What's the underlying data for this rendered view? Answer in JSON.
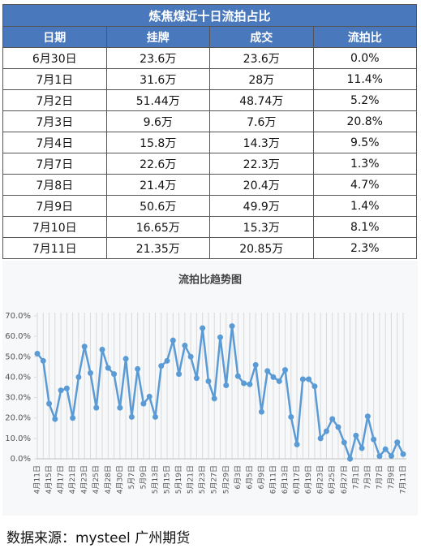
{
  "table": {
    "title": "炼焦煤近十日流拍占比",
    "columns": [
      "日期",
      "挂牌",
      "成交",
      "流拍比"
    ],
    "rows": [
      [
        "6月30日",
        "23.6万",
        "23.6万",
        "0.0%"
      ],
      [
        "7月1日",
        "31.6万",
        "28万",
        "11.4%"
      ],
      [
        "7月2日",
        "51.44万",
        "48.74万",
        "5.2%"
      ],
      [
        "7月3日",
        "9.6万",
        "7.6万",
        "20.8%"
      ],
      [
        "7月4日",
        "15.8万",
        "14.3万",
        "9.5%"
      ],
      [
        "7月7日",
        "22.6万",
        "22.3万",
        "1.3%"
      ],
      [
        "7月8日",
        "21.4万",
        "20.4万",
        "4.7%"
      ],
      [
        "7月9日",
        "50.6万",
        "49.9万",
        "1.4%"
      ],
      [
        "7月10日",
        "16.65万",
        "15.3万",
        "8.1%"
      ],
      [
        "7月11日",
        "21.35万",
        "20.85万",
        "2.3%"
      ]
    ]
  },
  "chart_data": {
    "type": "line",
    "title": "流拍比趋势图",
    "categories": [
      "4月11日",
      null,
      "4月15日",
      null,
      "4月17日",
      null,
      "4月21日",
      null,
      "4月23日",
      null,
      "4月25日",
      null,
      "4月28日",
      null,
      "4月30日",
      null,
      "5月7日",
      null,
      "5月9日",
      null,
      "5月13日",
      null,
      "5月15日",
      null,
      "5月19日",
      null,
      "5月21日",
      null,
      "5月23日",
      null,
      "5月27日",
      null,
      "5月29日",
      null,
      "6月3日",
      null,
      "6月5日",
      null,
      "6月9日",
      null,
      "6月11日",
      null,
      "6月13日",
      null,
      "6月17日",
      null,
      "6月19日",
      null,
      "6月23日",
      null,
      "6月25日",
      null,
      "6月27日",
      null,
      "7月1日",
      null,
      "7月3日",
      null,
      "7月7日",
      null,
      "7月9日",
      null,
      "7月11日"
    ],
    "series": [
      {
        "name": "流拍比",
        "color": "#5b9bd5",
        "values": [
          51.5,
          48,
          27,
          19.5,
          33.5,
          34.5,
          20,
          40,
          55,
          42,
          25,
          53.5,
          44.5,
          41.5,
          25,
          49,
          20.5,
          44,
          27,
          30.5,
          20.5,
          45.5,
          48,
          58,
          41.5,
          55.5,
          50,
          39.5,
          64,
          38,
          29.5,
          59.5,
          36,
          65,
          40.5,
          37,
          36.5,
          46,
          23,
          43,
          40,
          38,
          43.5,
          20.5,
          7,
          39,
          39,
          35.5,
          10,
          13.5,
          19.5,
          15.5,
          8,
          0,
          11.4,
          5.2,
          20.8,
          9.5,
          1.3,
          4.7,
          1.4,
          8.1,
          2.3
        ]
      }
    ],
    "ylim": [
      0,
      70
    ],
    "yticks": [
      {
        "value": 0,
        "label": "0.0%"
      },
      {
        "value": 10,
        "label": "10.0%"
      },
      {
        "value": 20,
        "label": "20.0%"
      },
      {
        "value": 30,
        "label": "30.0%"
      },
      {
        "value": 40,
        "label": "40.0%"
      },
      {
        "value": 50,
        "label": "50.0%"
      },
      {
        "value": 60,
        "label": "60.0%"
      },
      {
        "value": 70,
        "label": "70.0%"
      }
    ],
    "grid": true
  },
  "source": "数据来源：mysteel  广州期货"
}
